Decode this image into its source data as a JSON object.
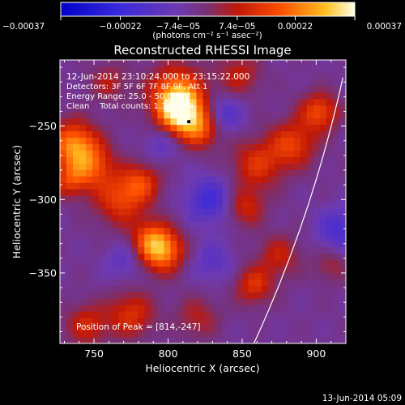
{
  "colorbar": {
    "ticks": [
      "-0.00037",
      "-0.00022",
      "-7.4e-05",
      "7.4e-05",
      "0.00022",
      "0.00037"
    ],
    "units_label": "(photons cm⁻² s⁻¹ asec⁻²)",
    "range": [
      -0.00037,
      0.00037
    ]
  },
  "chart_data": {
    "type": "heatmap",
    "title": "Reconstructed RHESSI Image",
    "xlabel": "Heliocentric X (arcsec)",
    "ylabel": "Heliocentric Y (arcsec)",
    "xlim": [
      727,
      920
    ],
    "ylim": [
      -398,
      -205
    ],
    "xticks": [
      750,
      800,
      850,
      900
    ],
    "yticks": [
      -250,
      -300,
      -350
    ],
    "annotations": [
      "12-Jun-2014 23:10:24.000 to 23:15:22.000",
      "Detectors: 3F 5F 6F 7F 8F 9F, Att 1",
      "Energy Range: 25.0 - 50.0 keV",
      "Clean    Total counts: 1.36E+04"
    ],
    "peak_label": "Position of Peak = [814,-247]",
    "peak": [
      814,
      -247
    ],
    "blobs": [
      {
        "x": 808,
        "y": -240,
        "v": 0.00036,
        "r": 10
      },
      {
        "x": 806,
        "y": -227,
        "v": 0.00024,
        "r": 13
      },
      {
        "x": 822,
        "y": -252,
        "v": 0.0002,
        "r": 9
      },
      {
        "x": 736,
        "y": -262,
        "v": 0.00026,
        "r": 11
      },
      {
        "x": 748,
        "y": -277,
        "v": 0.0002,
        "r": 11
      },
      {
        "x": 733,
        "y": -287,
        "v": 0.00014,
        "r": 8
      },
      {
        "x": 796,
        "y": -335,
        "v": 0.00028,
        "r": 10
      },
      {
        "x": 788,
        "y": -326,
        "v": 0.00016,
        "r": 9
      },
      {
        "x": 768,
        "y": -300,
        "v": 0.00018,
        "r": 12
      },
      {
        "x": 782,
        "y": -288,
        "v": 0.00016,
        "r": 9
      },
      {
        "x": 775,
        "y": -378,
        "v": 0.00016,
        "r": 11
      },
      {
        "x": 745,
        "y": -385,
        "v": 0.00014,
        "r": 10
      },
      {
        "x": 860,
        "y": -276,
        "v": 0.00016,
        "r": 12
      },
      {
        "x": 884,
        "y": -262,
        "v": 0.00018,
        "r": 11
      },
      {
        "x": 902,
        "y": -240,
        "v": 0.0002,
        "r": 9
      },
      {
        "x": 852,
        "y": -305,
        "v": 0.00014,
        "r": 9
      },
      {
        "x": 875,
        "y": -338,
        "v": 0.00012,
        "r": 10
      },
      {
        "x": 858,
        "y": -358,
        "v": 0.00016,
        "r": 9
      },
      {
        "x": 820,
        "y": -380,
        "v": 0.0001,
        "r": 10
      },
      {
        "x": 848,
        "y": -215,
        "v": 0.00012,
        "r": 10
      },
      {
        "x": 760,
        "y": -220,
        "v": 0.0001,
        "r": 9
      },
      {
        "x": 910,
        "y": -345,
        "v": 8e-05,
        "r": 8
      },
      {
        "x": 828,
        "y": -300,
        "v": -0.00016,
        "r": 11
      },
      {
        "x": 838,
        "y": -242,
        "v": -0.00012,
        "r": 9
      },
      {
        "x": 915,
        "y": -320,
        "v": -0.00014,
        "r": 10
      },
      {
        "x": 795,
        "y": -262,
        "v": -8e-05,
        "r": 8
      },
      {
        "x": 830,
        "y": -342,
        "v": -9e-05,
        "r": 10
      },
      {
        "x": 770,
        "y": -342,
        "v": -8e-05,
        "r": 9
      }
    ],
    "limb_curve": [
      [
        857,
        -400
      ],
      [
        880,
        -350
      ],
      [
        902,
        -290
      ],
      [
        918,
        -217
      ]
    ]
  },
  "footer_date": "13-Jun-2014 05:09"
}
